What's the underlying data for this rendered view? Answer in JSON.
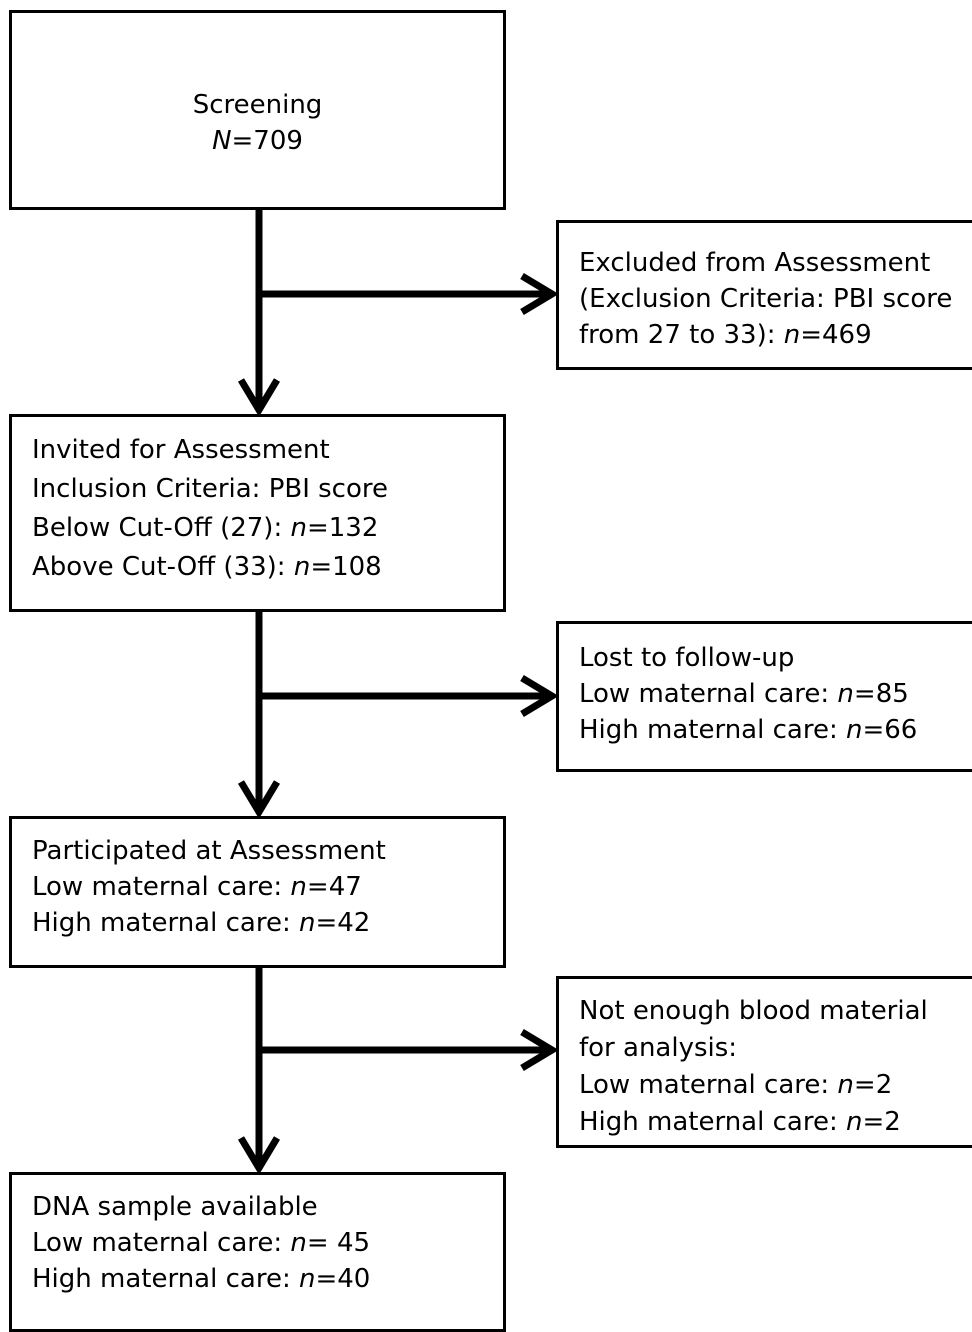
{
  "boxes": {
    "screening": {
      "lines": [
        {
          "pre": "Screening",
          "var": "",
          "post": ""
        },
        {
          "pre": "",
          "var": "N",
          "post": "=709"
        }
      ]
    },
    "excluded": {
      "lines": [
        {
          "pre": "Excluded from Assessment",
          "var": "",
          "post": ""
        },
        {
          "pre": "(Exclusion Criteria: PBI score",
          "var": "",
          "post": ""
        },
        {
          "pre": "from 27 to 33): ",
          "var": "n",
          "post": "=469"
        }
      ]
    },
    "invited": {
      "lines": [
        {
          "pre": "Invited for Assessment",
          "var": "",
          "post": ""
        },
        {
          "pre": "Inclusion Criteria: PBI score",
          "var": "",
          "post": ""
        },
        {
          "pre": "Below Cut-Off (27): ",
          "var": "n",
          "post": "=132"
        },
        {
          "pre": "Above Cut-Off (33): ",
          "var": "n",
          "post": "=108"
        }
      ]
    },
    "lost": {
      "lines": [
        {
          "pre": "Lost to follow-up",
          "var": "",
          "post": ""
        },
        {
          "pre": "Low maternal care: ",
          "var": "n",
          "post": "=85"
        },
        {
          "pre": "High maternal care: ",
          "var": "n",
          "post": "=66"
        }
      ]
    },
    "participated": {
      "lines": [
        {
          "pre": "Participated at Assessment",
          "var": "",
          "post": ""
        },
        {
          "pre": "Low maternal care: ",
          "var": "n",
          "post": "=47"
        },
        {
          "pre": "High maternal care: ",
          "var": "n",
          "post": "=42"
        }
      ]
    },
    "not_enough": {
      "lines": [
        {
          "pre": "Not enough blood material",
          "var": "",
          "post": ""
        },
        {
          "pre": "for analysis:",
          "var": "",
          "post": ""
        },
        {
          "pre": "Low maternal care: ",
          "var": "n",
          "post": "=2"
        },
        {
          "pre": "High maternal care: ",
          "var": "n",
          "post": "=2"
        }
      ]
    },
    "dna": {
      "lines": [
        {
          "pre": "DNA sample available",
          "var": "",
          "post": ""
        },
        {
          "pre": "Low maternal care: ",
          "var": "n",
          "post": "= 45"
        },
        {
          "pre": "High maternal care: ",
          "var": "n",
          "post": "=40"
        }
      ]
    }
  }
}
